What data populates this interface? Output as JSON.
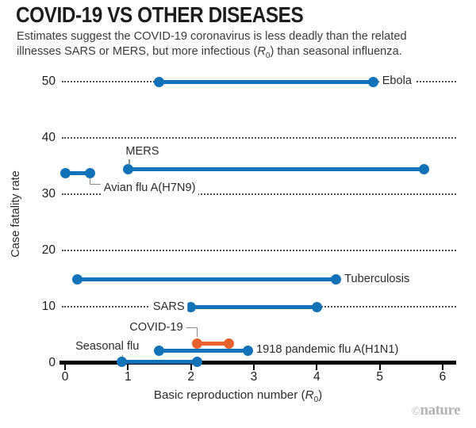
{
  "header": {
    "title": "COVID-19 VS OTHER DISEASES",
    "subtitle": {
      "line1": "Estimates suggest the COVID-19 coronavirus is less deadly than the related",
      "line2_pre": "illnesses SARS or MERS, but more infectious (",
      "r": "R",
      "r_sub": "0",
      "line2_post": ") than seasonal influenza."
    }
  },
  "chart_data": {
    "type": "dumbbell-range-bar",
    "title": "COVID-19 VS OTHER DISEASES",
    "ylabel": "Case fatality rate",
    "xlabel": {
      "pre": "Basic reproduction number (",
      "r": "R",
      "sub": "0",
      "post": ")"
    },
    "xlim": [
      0,
      6
    ],
    "ylim": [
      0,
      52
    ],
    "x_ticks": [
      0,
      1,
      2,
      3,
      4,
      5,
      6
    ],
    "y_ticks": [
      0,
      10,
      20,
      30,
      40,
      50
    ],
    "grid": "dotted-horizontal",
    "legend": "none",
    "colors": {
      "blue": "#1272b8",
      "orange": "#e8622d",
      "axis": "#000000",
      "grid_dots": "#4b4b4b",
      "connector": "#8c8c8c"
    },
    "series": [
      {
        "name": "Ebola",
        "r0_range": [
          1.5,
          4.9
        ],
        "case_fatality_rate": 50,
        "color": "blue",
        "label_placement": "right"
      },
      {
        "name": "MERS",
        "r0_range": [
          1.0,
          5.7
        ],
        "case_fatality_rate": 34.5,
        "color": "blue",
        "label_placement": "callout-above"
      },
      {
        "name": "Avian flu A(H7N9)",
        "r0_range": [
          0.0,
          0.4
        ],
        "case_fatality_rate": 33.8,
        "color": "blue",
        "label_placement": "elbow-below"
      },
      {
        "name": "Tuberculosis",
        "r0_range": [
          0.2,
          4.3
        ],
        "case_fatality_rate": 14.8,
        "color": "blue",
        "label_placement": "right"
      },
      {
        "name": "SARS",
        "r0_range": [
          2.0,
          4.0
        ],
        "case_fatality_rate": 9.9,
        "color": "blue",
        "label_placement": "left"
      },
      {
        "name": "COVID-19",
        "r0_range": [
          2.1,
          2.6
        ],
        "case_fatality_rate": 3.4,
        "color": "orange",
        "label_placement": "elbow-above"
      },
      {
        "name": "1918 pandemic flu A(H1N1)",
        "r0_range": [
          1.5,
          2.9
        ],
        "case_fatality_rate": 2.2,
        "color": "blue",
        "label_placement": "right"
      },
      {
        "name": "Seasonal flu",
        "r0_range": [
          0.9,
          2.1
        ],
        "case_fatality_rate": 0.2,
        "color": "blue",
        "label_placement": "above-start"
      }
    ]
  },
  "footer": {
    "copyright": "©",
    "brand": "nature"
  }
}
